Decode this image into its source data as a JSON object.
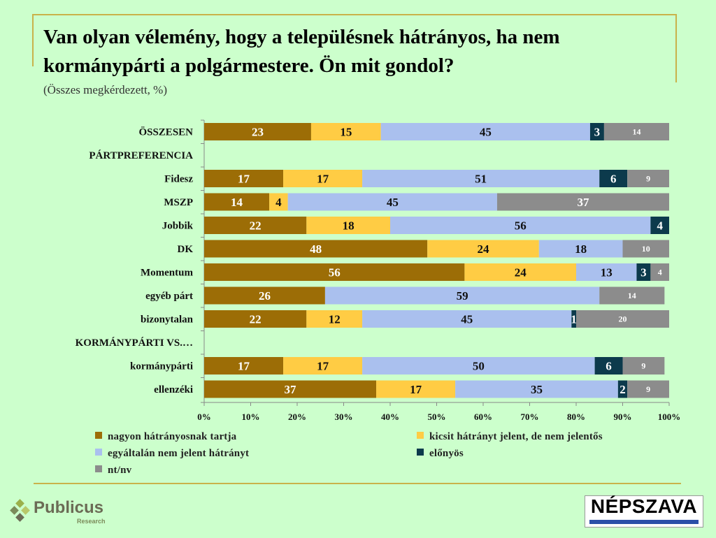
{
  "header": {
    "title": "Van olyan vélemény, hogy a településnek hátrányos, ha nem kormánypárti a polgármestere. Ön mit gondol?",
    "subtitle": "(Összes megkérdezett, %)"
  },
  "chart_data": {
    "type": "bar",
    "orientation": "horizontal",
    "stacked": true,
    "xlim": [
      0,
      100
    ],
    "ticks": [
      "0%",
      "10%",
      "20%",
      "30%",
      "40%",
      "50%",
      "60%",
      "70%",
      "80%",
      "90%",
      "100%"
    ],
    "categories": [
      "ÖSSZESEN",
      "PÁRTPREFERENCIA",
      "Fidesz",
      "MSZP",
      "Jobbik",
      "DK",
      "Momentum",
      "egyéb párt",
      "bizonytalan",
      "KORMÁNYPÁRTI VS.…",
      "kormánypárti",
      "ellenzéki"
    ],
    "series": [
      {
        "name": "nagyon hátrányosnak tartja",
        "color": "#9c6d06",
        "values": [
          23,
          null,
          17,
          14,
          22,
          48,
          56,
          26,
          22,
          null,
          17,
          37
        ]
      },
      {
        "name": "kicsit hátrányt jelent, de nem jelentős",
        "color": "#ffcc44",
        "values": [
          15,
          null,
          17,
          4,
          18,
          24,
          24,
          null,
          12,
          null,
          17,
          17
        ]
      },
      {
        "name": "egyáltalán nem jelent hátrányt",
        "color": "#aac0ee",
        "values": [
          45,
          null,
          51,
          45,
          56,
          18,
          13,
          59,
          45,
          null,
          50,
          35
        ]
      },
      {
        "name": "előnyös",
        "color": "#0c3a4c",
        "values": [
          3,
          null,
          6,
          null,
          4,
          null,
          3,
          null,
          1,
          null,
          6,
          2
        ]
      },
      {
        "name": "nt/nv",
        "color": "#8c8c8c",
        "values": [
          14,
          null,
          9,
          37,
          null,
          10,
          4,
          14,
          20,
          null,
          9,
          9
        ]
      }
    ]
  },
  "logos": {
    "left_brand": "Publicus",
    "left_sub": "Research",
    "right_brand": "NÉPSZAVA"
  }
}
